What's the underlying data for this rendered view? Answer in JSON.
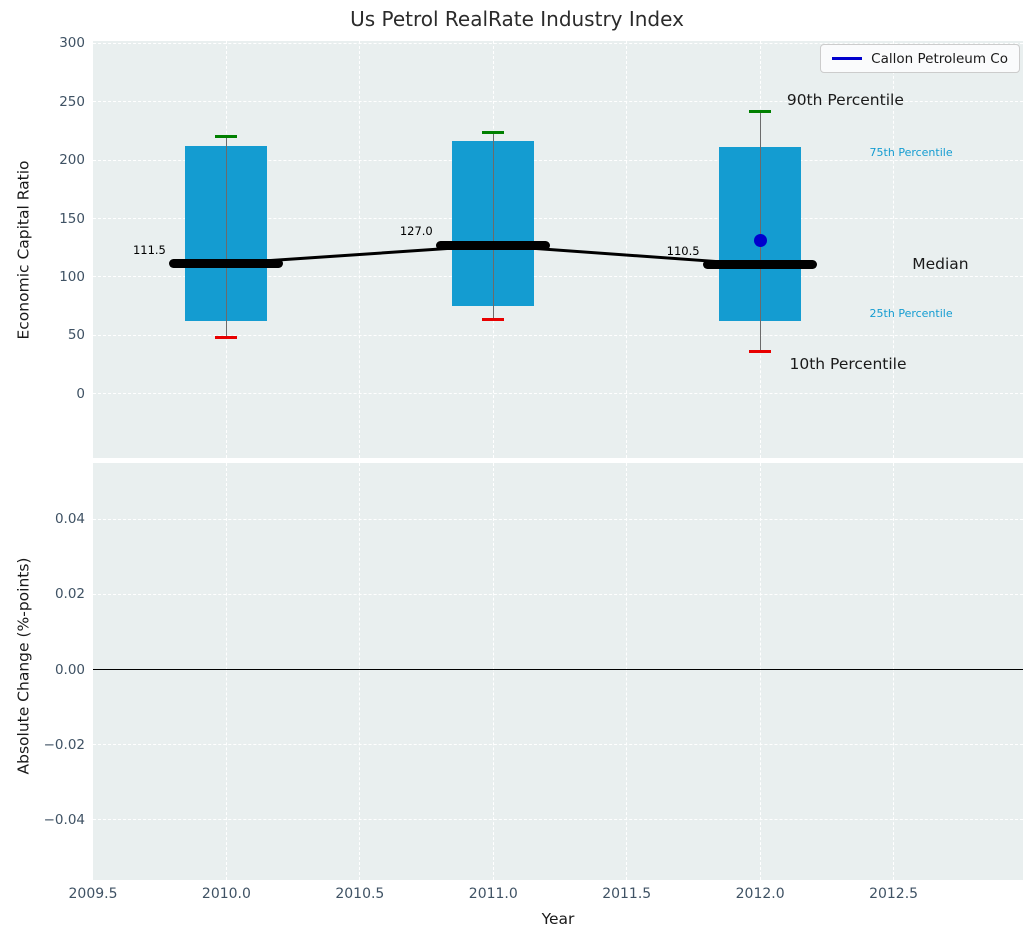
{
  "figure": {
    "title": "Us Petrol RealRate Industry Index",
    "legend": {
      "label": "Callon Petroleum Co"
    }
  },
  "colors": {
    "figure_bg": "#ffffff",
    "panel_bg": "#e9efef",
    "grid": "#ffffff",
    "box_fill": "#149cd1",
    "whisker": "#6b6b6b",
    "cap_90th": "#008000",
    "cap_10th": "#e80000",
    "median": "#000000",
    "company": "#0000cd",
    "tick_label": "#3f5264",
    "text": "#1a1a1a",
    "annotation_accent": "#149cd1",
    "zero_line": "#000000"
  },
  "chart_data": {
    "type": "boxplot",
    "title": "Us Petrol RealRate Industry Index",
    "grid": "on",
    "legend_position": "upper right",
    "x": {
      "label": "Year",
      "lim": [
        2009.5,
        2012.985
      ],
      "tick_values": [
        2009.5,
        2010.0,
        2010.5,
        2011.0,
        2011.5,
        2012.0,
        2012.5
      ],
      "tick_labels": [
        "2009.5",
        "2010.0",
        "2010.5",
        "2011.0",
        "2011.5",
        "2012.0",
        "2012.5"
      ]
    },
    "panels": [
      {
        "name": "economic-capital-ratio",
        "ylabel": "Economic Capital Ratio",
        "ylim": [
          -55,
          302
        ],
        "ytick_values": [
          0,
          50,
          100,
          150,
          200,
          250,
          300
        ],
        "ytick_labels": [
          "0",
          "50",
          "100",
          "150",
          "200",
          "250",
          "300"
        ],
        "boxes": [
          {
            "year": 2010,
            "p10": 48,
            "p25": 62,
            "median": 111.5,
            "p75": 212,
            "p90": 220,
            "label": "111.5"
          },
          {
            "year": 2011,
            "p10": 64,
            "p25": 75,
            "median": 127.0,
            "p75": 216,
            "p90": 224,
            "label": "127.0"
          },
          {
            "year": 2012,
            "p10": 36,
            "p25": 62,
            "median": 110.5,
            "p75": 211,
            "p90": 242,
            "label": "110.5"
          }
        ],
        "median_series": {
          "years": [
            2010,
            2011,
            2012
          ],
          "values": [
            111.5,
            127.0,
            110.5
          ]
        },
        "company_series": {
          "name": "Callon Petroleum Co",
          "points": [
            {
              "year": 2012,
              "value": 131
            }
          ]
        },
        "annotations": [
          {
            "text": "90th Percentile",
            "x": 2012.1,
            "y": 251,
            "size": "large",
            "color": "dark"
          },
          {
            "text": "75th Percentile",
            "x": 2012.41,
            "y": 206,
            "size": "small",
            "color": "accent"
          },
          {
            "text": "Median",
            "x": 2012.57,
            "y": 110,
            "size": "large",
            "color": "dark"
          },
          {
            "text": "25th Percentile",
            "x": 2012.41,
            "y": 68,
            "size": "small",
            "color": "accent"
          },
          {
            "text": "10th Percentile",
            "x": 2012.11,
            "y": 25,
            "size": "large",
            "color": "dark"
          }
        ]
      },
      {
        "name": "absolute-change",
        "ylabel": "Absolute Change (%-points)",
        "ylim": [
          -0.056,
          0.055
        ],
        "ytick_values": [
          0.04,
          0.02,
          0.0,
          -0.02,
          -0.04
        ],
        "ytick_labels": [
          "0.04",
          "0.02",
          "0.00",
          "−0.02",
          "−0.04"
        ],
        "zero_line": 0.0
      }
    ]
  }
}
